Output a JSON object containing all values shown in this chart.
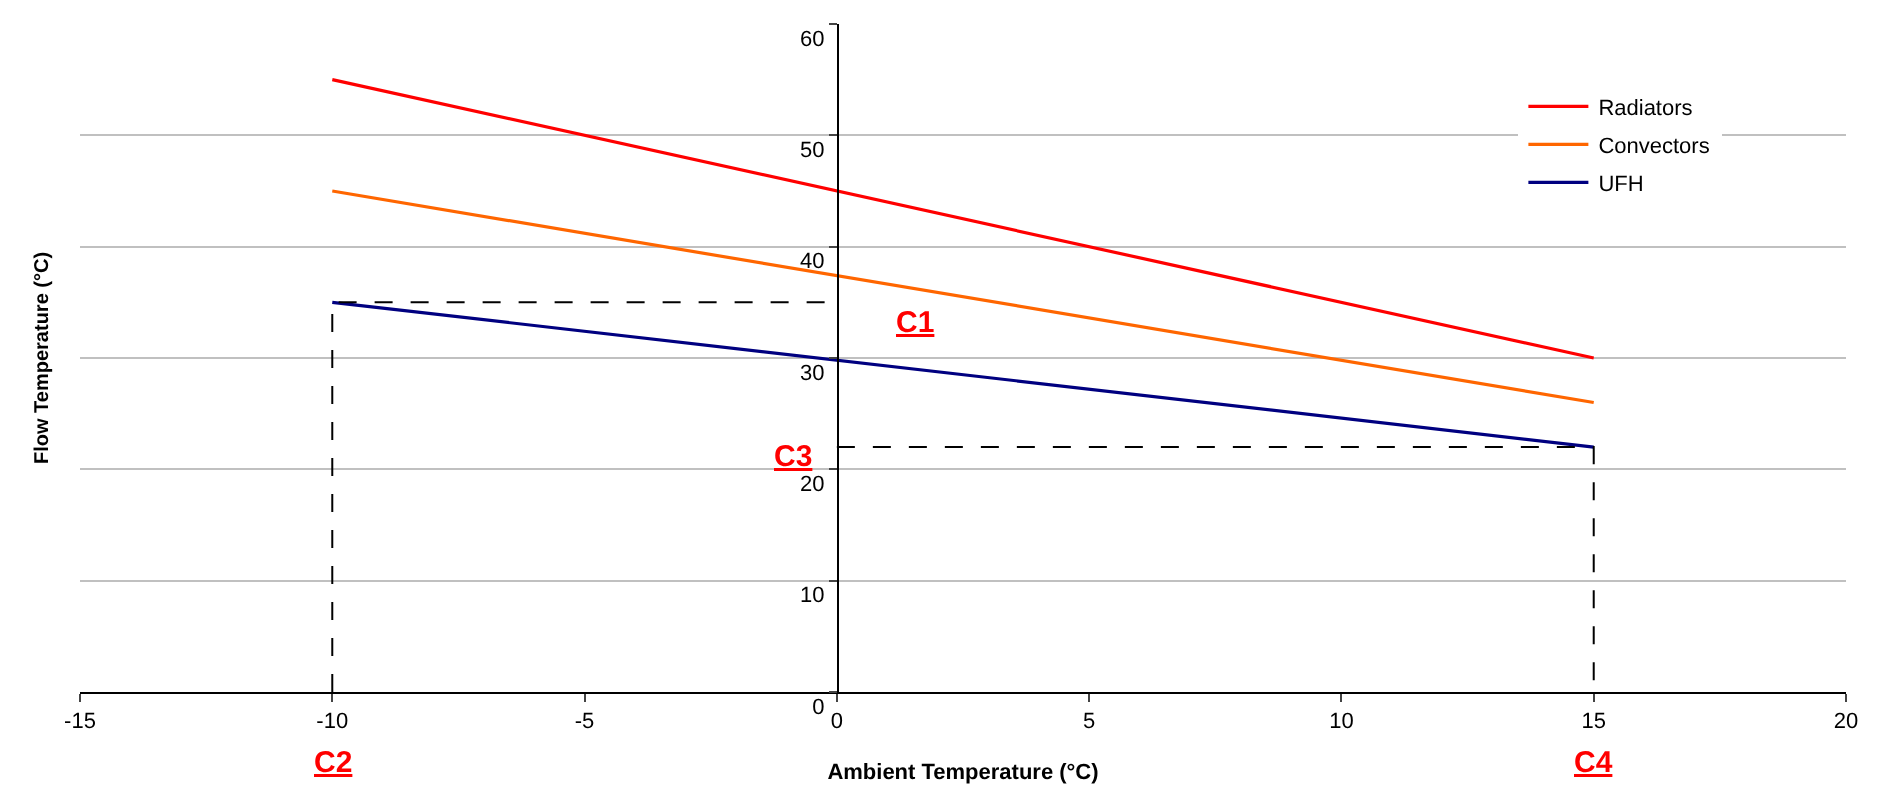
{
  "chart_data": {
    "type": "line",
    "xlabel": "Ambient Temperature (°C)",
    "ylabel": "Flow Temperature (°C)",
    "x": [
      -10,
      15
    ],
    "series": [
      {
        "name": "Radiators",
        "color": "#ff0000",
        "values": [
          55,
          30
        ]
      },
      {
        "name": "Convectors",
        "color": "#ff6600",
        "values": [
          45,
          26
        ]
      },
      {
        "name": "UFH",
        "color": "#000080",
        "values": [
          35,
          22
        ]
      },
      {
        "color": "#000000",
        "x": [
          -10,
          -10,
          0
        ],
        "values": [
          0,
          35,
          35
        ],
        "line_style": "dashed"
      },
      {
        "color": "#000000",
        "x": [
          0,
          15,
          15
        ],
        "values": [
          22,
          22,
          0
        ],
        "line_style": "dashed"
      }
    ],
    "xlim": [
      -15,
      20
    ],
    "xticks": [
      -15,
      -10,
      -5,
      0,
      5,
      10,
      15,
      20
    ],
    "ylim": [
      0,
      60
    ],
    "yticks": [
      0,
      10,
      20,
      30,
      40,
      50,
      60
    ],
    "grid": "y",
    "legend": "top right",
    "marker": "none",
    "line_style": "solid",
    "annotations": [
      {
        "text": "C1",
        "x": 0,
        "y": 35
      },
      {
        "text": "C2",
        "x": -10,
        "y": 0
      },
      {
        "text": "C3",
        "x": 0,
        "y": 22
      },
      {
        "text": "C4",
        "x": 15,
        "y": 0
      }
    ]
  }
}
